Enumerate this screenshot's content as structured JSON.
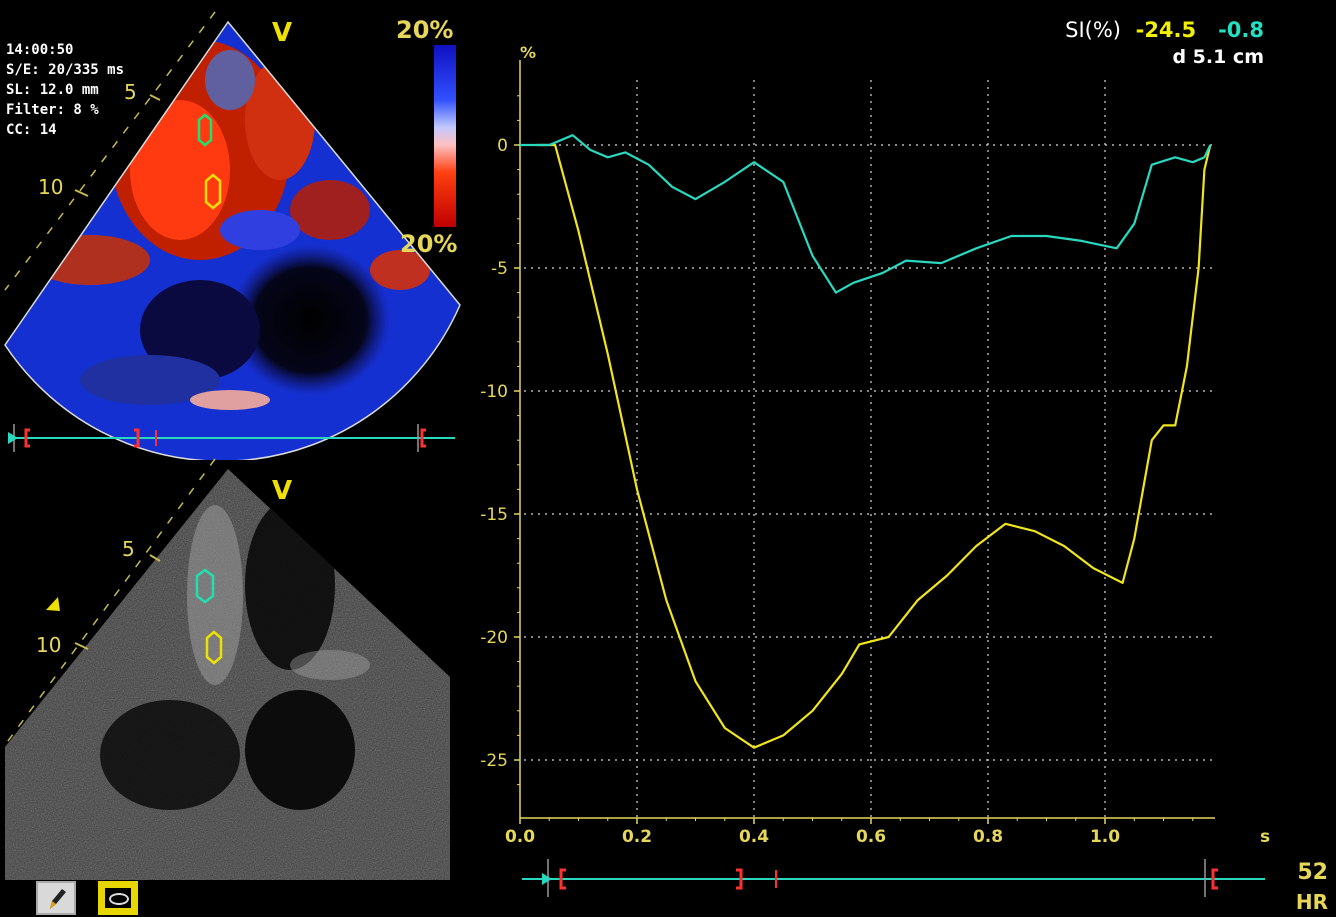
{
  "left_panel": {
    "info_lines": [
      "14:00:50",
      "S/E: 20/335 ms",
      "SL: 12.0 mm",
      "Filter:  8 %",
      "CC: 14"
    ],
    "scale_top": "20%",
    "scale_bottom": "20%",
    "view_label": "V",
    "depth_marks": [
      "5",
      "10"
    ],
    "bottom_view_label": "V",
    "bottom_depth_marks": [
      "5",
      "10"
    ]
  },
  "readout": {
    "label": "SI(%)",
    "yellow_value": "-24.5",
    "cyan_value": "-0.8",
    "distance": "d 5.1 cm"
  },
  "heart_rate": {
    "value": "52",
    "label": "HR"
  },
  "colors": {
    "yellow": "#f0e41e",
    "cyan": "#2ad8c0",
    "axis": "#e6d65a",
    "marker": "#ff3030"
  },
  "chart_data": {
    "type": "line",
    "y_unit": "%",
    "x_unit": "s",
    "xlim": [
      0,
      1.2
    ],
    "ylim": [
      -26.5,
      3
    ],
    "x_ticks": [
      "0.0",
      "0.2",
      "0.4",
      "0.6",
      "0.8",
      "1.0"
    ],
    "y_ticks": [
      "0",
      "-5",
      "-10",
      "-15",
      "-20",
      "-25"
    ],
    "y_tick_values": [
      0,
      -5,
      -10,
      -15,
      -20,
      -25
    ],
    "x_tick_values": [
      0,
      0.2,
      0.4,
      0.6,
      0.8,
      1.0
    ],
    "grid": true,
    "series": [
      {
        "color": "yellow",
        "points": [
          [
            0.03,
            0
          ],
          [
            0.06,
            0
          ],
          [
            0.1,
            -3.5
          ],
          [
            0.15,
            -8.5
          ],
          [
            0.2,
            -14
          ],
          [
            0.25,
            -18.5
          ],
          [
            0.3,
            -21.8
          ],
          [
            0.35,
            -23.7
          ],
          [
            0.4,
            -24.5
          ],
          [
            0.45,
            -24
          ],
          [
            0.5,
            -23
          ],
          [
            0.55,
            -21.5
          ],
          [
            0.58,
            -20.3
          ],
          [
            0.63,
            -20
          ],
          [
            0.68,
            -18.5
          ],
          [
            0.73,
            -17.5
          ],
          [
            0.78,
            -16.3
          ],
          [
            0.83,
            -15.4
          ],
          [
            0.88,
            -15.7
          ],
          [
            0.93,
            -16.3
          ],
          [
            0.98,
            -17.2
          ],
          [
            1.03,
            -17.8
          ],
          [
            1.05,
            -16
          ],
          [
            1.08,
            -12
          ],
          [
            1.1,
            -11.4
          ],
          [
            1.12,
            -11.4
          ],
          [
            1.14,
            -9
          ],
          [
            1.16,
            -5
          ],
          [
            1.17,
            -1
          ],
          [
            1.18,
            0
          ]
        ]
      },
      {
        "color": "cyan",
        "points": [
          [
            0.0,
            0
          ],
          [
            0.05,
            0
          ],
          [
            0.09,
            0.4
          ],
          [
            0.12,
            -0.2
          ],
          [
            0.15,
            -0.5
          ],
          [
            0.18,
            -0.3
          ],
          [
            0.22,
            -0.8
          ],
          [
            0.26,
            -1.7
          ],
          [
            0.3,
            -2.2
          ],
          [
            0.35,
            -1.5
          ],
          [
            0.4,
            -0.7
          ],
          [
            0.45,
            -1.5
          ],
          [
            0.5,
            -4.5
          ],
          [
            0.54,
            -6
          ],
          [
            0.57,
            -5.6
          ],
          [
            0.62,
            -5.2
          ],
          [
            0.66,
            -4.7
          ],
          [
            0.72,
            -4.8
          ],
          [
            0.78,
            -4.2
          ],
          [
            0.84,
            -3.7
          ],
          [
            0.9,
            -3.7
          ],
          [
            0.96,
            -3.9
          ],
          [
            1.02,
            -4.2
          ],
          [
            1.05,
            -3.2
          ],
          [
            1.08,
            -0.8
          ],
          [
            1.12,
            -0.5
          ],
          [
            1.15,
            -0.7
          ],
          [
            1.17,
            -0.5
          ],
          [
            1.18,
            0
          ]
        ]
      }
    ]
  }
}
